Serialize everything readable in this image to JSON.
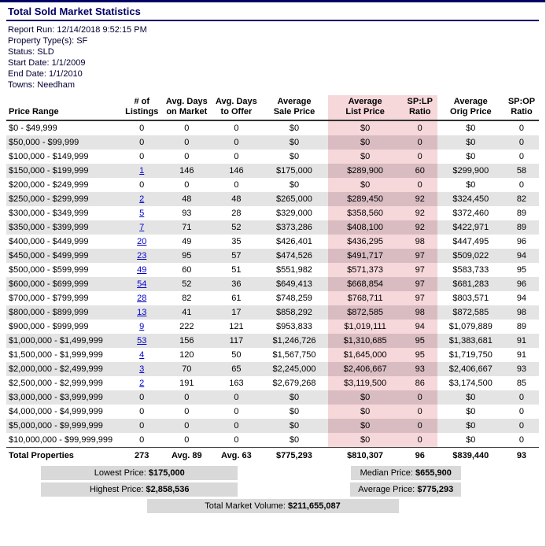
{
  "title": "Total Sold Market Statistics",
  "report_info": [
    "Report Run: 12/14/2018 9:52:15 PM",
    "Property Type(s): SF",
    "Status: SLD",
    "Start Date: 1/1/2009",
    "End Date: 1/1/2010",
    "Towns: Needham"
  ],
  "table": {
    "headers": [
      {
        "lines": [
          "Price Range"
        ],
        "pink": false
      },
      {
        "lines": [
          "# of",
          "Listings"
        ],
        "pink": false
      },
      {
        "lines": [
          "Avg. Days",
          "on Market"
        ],
        "pink": false
      },
      {
        "lines": [
          "Avg. Days",
          "to Offer"
        ],
        "pink": false
      },
      {
        "lines": [
          "Average",
          "Sale Price"
        ],
        "pink": false
      },
      {
        "lines": [
          "Average",
          "List Price"
        ],
        "pink": true
      },
      {
        "lines": [
          "SP:LP",
          "Ratio"
        ],
        "pink": true
      },
      {
        "lines": [
          "Average",
          "Orig Price"
        ],
        "pink": false
      },
      {
        "lines": [
          "SP:OP",
          "Ratio"
        ],
        "pink": false
      }
    ],
    "rows": [
      [
        "$0 - $49,999",
        "0",
        "0",
        "0",
        "$0",
        "$0",
        "0",
        "$0",
        "0"
      ],
      [
        "$50,000 - $99,999",
        "0",
        "0",
        "0",
        "$0",
        "$0",
        "0",
        "$0",
        "0"
      ],
      [
        "$100,000 - $149,999",
        "0",
        "0",
        "0",
        "$0",
        "$0",
        "0",
        "$0",
        "0"
      ],
      [
        "$150,000 - $199,999",
        "1",
        "146",
        "146",
        "$175,000",
        "$289,900",
        "60",
        "$299,900",
        "58"
      ],
      [
        "$200,000 - $249,999",
        "0",
        "0",
        "0",
        "$0",
        "$0",
        "0",
        "$0",
        "0"
      ],
      [
        "$250,000 - $299,999",
        "2",
        "48",
        "48",
        "$265,000",
        "$289,450",
        "92",
        "$324,450",
        "82"
      ],
      [
        "$300,000 - $349,999",
        "5",
        "93",
        "28",
        "$329,000",
        "$358,560",
        "92",
        "$372,460",
        "89"
      ],
      [
        "$350,000 - $399,999",
        "7",
        "71",
        "52",
        "$373,286",
        "$408,100",
        "92",
        "$422,971",
        "89"
      ],
      [
        "$400,000 - $449,999",
        "20",
        "49",
        "35",
        "$426,401",
        "$436,295",
        "98",
        "$447,495",
        "96"
      ],
      [
        "$450,000 - $499,999",
        "23",
        "95",
        "57",
        "$474,526",
        "$491,717",
        "97",
        "$509,022",
        "94"
      ],
      [
        "$500,000 - $599,999",
        "49",
        "60",
        "51",
        "$551,982",
        "$571,373",
        "97",
        "$583,733",
        "95"
      ],
      [
        "$600,000 - $699,999",
        "54",
        "52",
        "36",
        "$649,413",
        "$668,854",
        "97",
        "$681,283",
        "96"
      ],
      [
        "$700,000 - $799,999",
        "28",
        "82",
        "61",
        "$748,259",
        "$768,711",
        "97",
        "$803,571",
        "94"
      ],
      [
        "$800,000 - $899,999",
        "13",
        "41",
        "17",
        "$858,292",
        "$872,585",
        "98",
        "$872,585",
        "98"
      ],
      [
        "$900,000 - $999,999",
        "9",
        "222",
        "121",
        "$953,833",
        "$1,019,111",
        "94",
        "$1,079,889",
        "89"
      ],
      [
        "$1,000,000 - $1,499,999",
        "53",
        "156",
        "117",
        "$1,246,726",
        "$1,310,685",
        "95",
        "$1,383,681",
        "91"
      ],
      [
        "$1,500,000 - $1,999,999",
        "4",
        "120",
        "50",
        "$1,567,750",
        "$1,645,000",
        "95",
        "$1,719,750",
        "91"
      ],
      [
        "$2,000,000 - $2,499,999",
        "3",
        "70",
        "65",
        "$2,245,000",
        "$2,406,667",
        "93",
        "$2,406,667",
        "93"
      ],
      [
        "$2,500,000 - $2,999,999",
        "2",
        "191",
        "163",
        "$2,679,268",
        "$3,119,500",
        "86",
        "$3,174,500",
        "85"
      ],
      [
        "$3,000,000 - $3,999,999",
        "0",
        "0",
        "0",
        "$0",
        "$0",
        "0",
        "$0",
        "0"
      ],
      [
        "$4,000,000 - $4,999,999",
        "0",
        "0",
        "0",
        "$0",
        "$0",
        "0",
        "$0",
        "0"
      ],
      [
        "$5,000,000 - $9,999,999",
        "0",
        "0",
        "0",
        "$0",
        "$0",
        "0",
        "$0",
        "0"
      ],
      [
        "$10,000,000 - $99,999,999",
        "0",
        "0",
        "0",
        "$0",
        "$0",
        "0",
        "$0",
        "0"
      ]
    ],
    "total": [
      "Total Properties",
      "273",
      "Avg. 89",
      "Avg. 63",
      "$775,293",
      "$810,307",
      "96",
      "$839,440",
      "93"
    ]
  },
  "summary": {
    "lowest": {
      "label": "Lowest Price:",
      "value": "$175,000"
    },
    "median": {
      "label": "Median Price:",
      "value": "$655,900"
    },
    "highest": {
      "label": "Highest Price:",
      "value": "$2,858,536"
    },
    "average": {
      "label": "Average Price:",
      "value": "$775,293"
    },
    "volume": {
      "label": "Total Market Volume:",
      "value": "$211,655,087"
    }
  },
  "colors": {
    "title_navy": "#000066",
    "info_navy": "#000033",
    "row_gray": "#e4e4e4",
    "highlight_pink": "#f6d7da",
    "highlight_pink_dark": "#d9bcc1",
    "chip_gray": "#d9d9d9",
    "link_blue": "#0000cc"
  }
}
